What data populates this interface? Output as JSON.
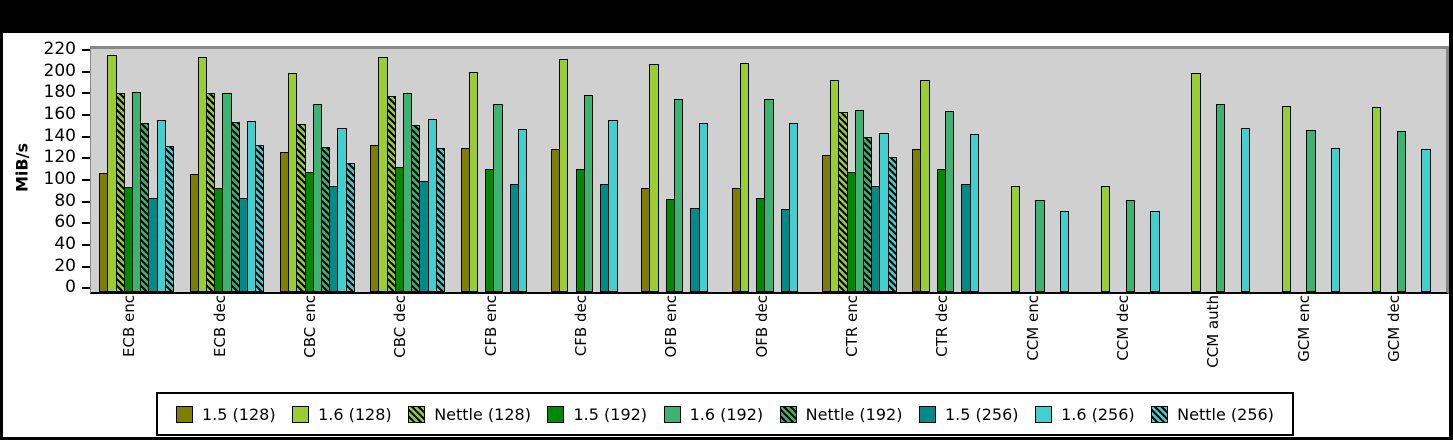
{
  "window": {
    "background": "#000000",
    "canvas_background": "#ffffff"
  },
  "chart_data": {
    "type": "bar",
    "title": "",
    "xlabel": "",
    "ylabel": "MiB/s",
    "ylim": [
      0,
      220
    ],
    "ytick_step": 20,
    "grid": false,
    "plot_background": "#d0d0d0",
    "legend_position": "bottom",
    "hatch_note": "series with hatch=true are drawn with black diagonal stripes over the base color",
    "categories": [
      "ECB enc",
      "ECB dec",
      "CBC enc",
      "CBC dec",
      "CFB enc",
      "CFB dec",
      "OFB enc",
      "OFB dec",
      "CTR enc",
      "CTR dec",
      "CCM enc",
      "CCM dec",
      "CCM auth",
      "GCM enc",
      "GCM dec"
    ],
    "series": [
      {
        "name": "1.5 (128)",
        "color": "#7e7e00",
        "hatch": false,
        "values": [
          110,
          109,
          129,
          136,
          133,
          132,
          96,
          96,
          127,
          132,
          null,
          null,
          null,
          null,
          null
        ]
      },
      {
        "name": "1.6 (128)",
        "color": "#9acd32",
        "hatch": false,
        "values": [
          219,
          217,
          202,
          217,
          203,
          215,
          211,
          212,
          196,
          196,
          98,
          98,
          202,
          172,
          171
        ]
      },
      {
        "name": "Nettle (128)",
        "color": "#9acd32",
        "hatch": true,
        "values": [
          184,
          184,
          155,
          181,
          null,
          null,
          null,
          null,
          166,
          null,
          null,
          null,
          null,
          null,
          null
        ]
      },
      {
        "name": "1.5 (192)",
        "color": "#008a00",
        "hatch": false,
        "values": [
          97,
          96,
          111,
          116,
          114,
          114,
          86,
          87,
          111,
          114,
          null,
          null,
          null,
          null,
          null
        ]
      },
      {
        "name": "1.6 (192)",
        "color": "#3cb371",
        "hatch": false,
        "values": [
          185,
          184,
          174,
          184,
          174,
          182,
          178,
          178,
          168,
          167,
          85,
          85,
          174,
          150,
          149
        ]
      },
      {
        "name": "Nettle (192)",
        "color": "#3cb371",
        "hatch": true,
        "values": [
          156,
          157,
          134,
          154,
          null,
          null,
          null,
          null,
          143,
          null,
          null,
          null,
          null,
          null,
          null
        ]
      },
      {
        "name": "1.5 (256)",
        "color": "#008b8b",
        "hatch": false,
        "values": [
          87,
          87,
          98,
          103,
          100,
          100,
          78,
          77,
          98,
          100,
          null,
          null,
          null,
          null,
          null
        ]
      },
      {
        "name": "1.6 (256)",
        "color": "#40d0d0",
        "hatch": false,
        "values": [
          159,
          158,
          152,
          160,
          151,
          159,
          156,
          156,
          147,
          146,
          75,
          75,
          152,
          133,
          132
        ]
      },
      {
        "name": "Nettle (256)",
        "color": "#40d0d0",
        "hatch": true,
        "values": [
          135,
          136,
          119,
          133,
          null,
          null,
          null,
          null,
          125,
          null,
          null,
          null,
          null,
          null,
          null
        ]
      }
    ]
  }
}
